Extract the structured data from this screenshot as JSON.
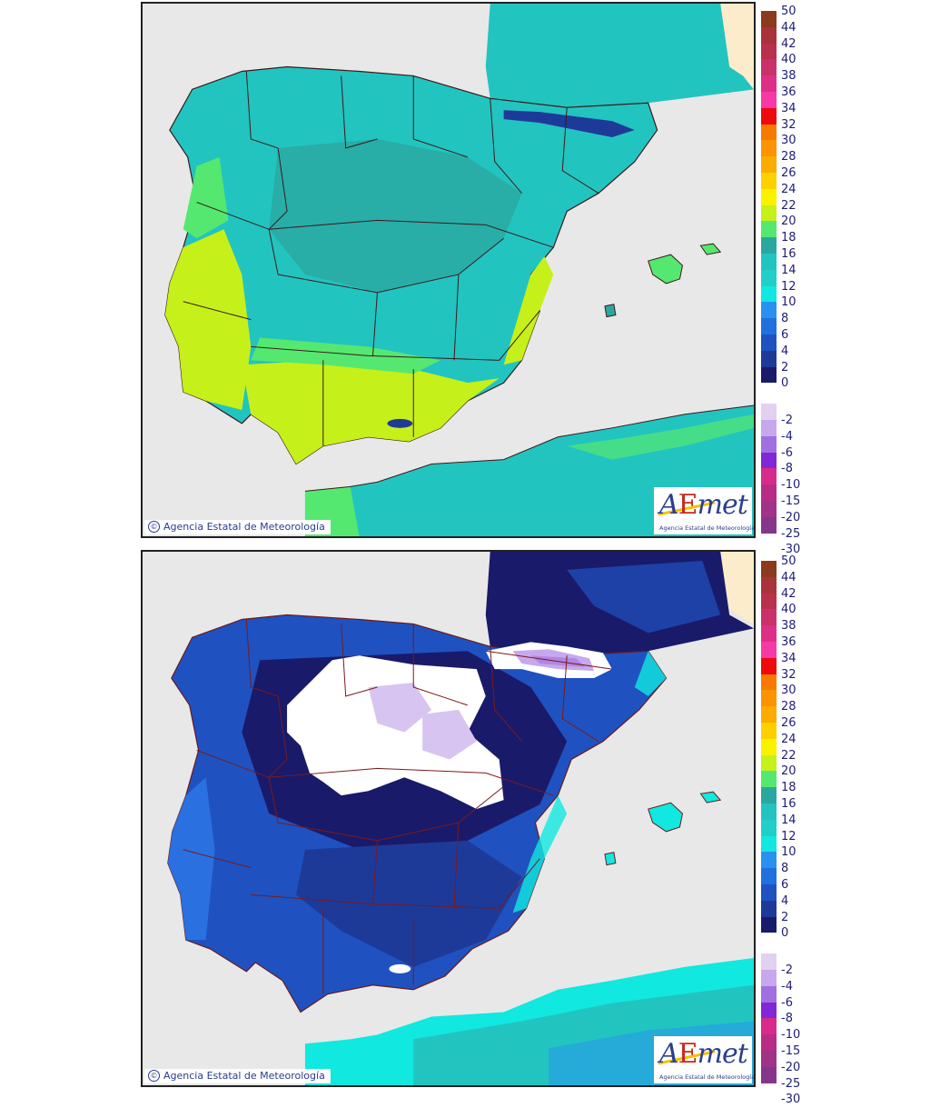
{
  "maps": [
    {
      "id": "top",
      "description": "Temperature map of Iberian Peninsula and Balearic Islands (warm scenario)",
      "copyright": "Agencia Estatal de Meteorología",
      "copyright_symbol": "©",
      "logo": {
        "word_a": "A",
        "word_e": "E",
        "word_rest": "met",
        "subtitle": "Agencia Estatal de Meteorología"
      }
    },
    {
      "id": "bottom",
      "description": "Temperature map of Iberian Peninsula and Balearic Islands (cold scenario, sub-zero areas in white/lilac)",
      "copyright": "Agencia Estatal de Meteorología",
      "copyright_symbol": "©",
      "logo": {
        "word_a": "A",
        "word_e": "E",
        "word_rest": "met",
        "subtitle": "Agencia Estatal de Meteorología"
      }
    }
  ],
  "legend": {
    "positive": [
      {
        "label": "50",
        "color": "#8b3a1e"
      },
      {
        "label": "44",
        "color": "#a8333a"
      },
      {
        "label": "42",
        "color": "#b8304c"
      },
      {
        "label": "40",
        "color": "#c8316a"
      },
      {
        "label": "38",
        "color": "#dd2f86"
      },
      {
        "label": "36",
        "color": "#f53aa8"
      },
      {
        "label": "34",
        "color": "#ee0a0a"
      },
      {
        "label": "32",
        "color": "#f77a00"
      },
      {
        "label": "30",
        "color": "#fb9400"
      },
      {
        "label": "28",
        "color": "#fcab00"
      },
      {
        "label": "26",
        "color": "#fdd000"
      },
      {
        "label": "24",
        "color": "#fbf200"
      },
      {
        "label": "22",
        "color": "#c6f01a"
      },
      {
        "label": "20",
        "color": "#55e870"
      },
      {
        "label": "18",
        "color": "#2aa8a0"
      },
      {
        "label": "16",
        "color": "#22c4c0"
      },
      {
        "label": "14",
        "color": "#20d0c8"
      },
      {
        "label": "12",
        "color": "#10e8e0"
      },
      {
        "label": "10",
        "color": "#2a90f0"
      },
      {
        "label": "8",
        "color": "#2070e0"
      },
      {
        "label": "6",
        "color": "#1f52c0"
      },
      {
        "label": "4",
        "color": "#1e3a98"
      },
      {
        "label": "2",
        "color": "#1a1a6a"
      },
      {
        "label": "0",
        "color": null
      }
    ],
    "negative": [
      {
        "label": "-2",
        "color": "#e2d0f0"
      },
      {
        "label": "-4",
        "color": "#c8a8ec"
      },
      {
        "label": "-6",
        "color": "#a070e0"
      },
      {
        "label": "-8",
        "color": "#8028d8"
      },
      {
        "label": "-10",
        "color": "#d82a8a"
      },
      {
        "label": "-15",
        "color": "#b82c86"
      },
      {
        "label": "-20",
        "color": "#a03288"
      },
      {
        "label": "-25",
        "color": "#86368a"
      },
      {
        "label": "-30",
        "color": null
      }
    ]
  },
  "colors": {
    "sea": "#e8e8e8",
    "france_land": "#fdeccb",
    "border_line": "#8b1a1a",
    "top_land_base": "#22c4c0",
    "top_land_warm": "#55e870",
    "top_land_hot": "#c6f01a",
    "top_mountain": "#1e3a98",
    "bottom_land_base": "#1f52c0",
    "bottom_land_cold": "#1a1a6a",
    "bottom_coast": "#2a90f0",
    "bottom_frost": "#ffffff",
    "bottom_frost_deep": "#d8c4f0"
  }
}
